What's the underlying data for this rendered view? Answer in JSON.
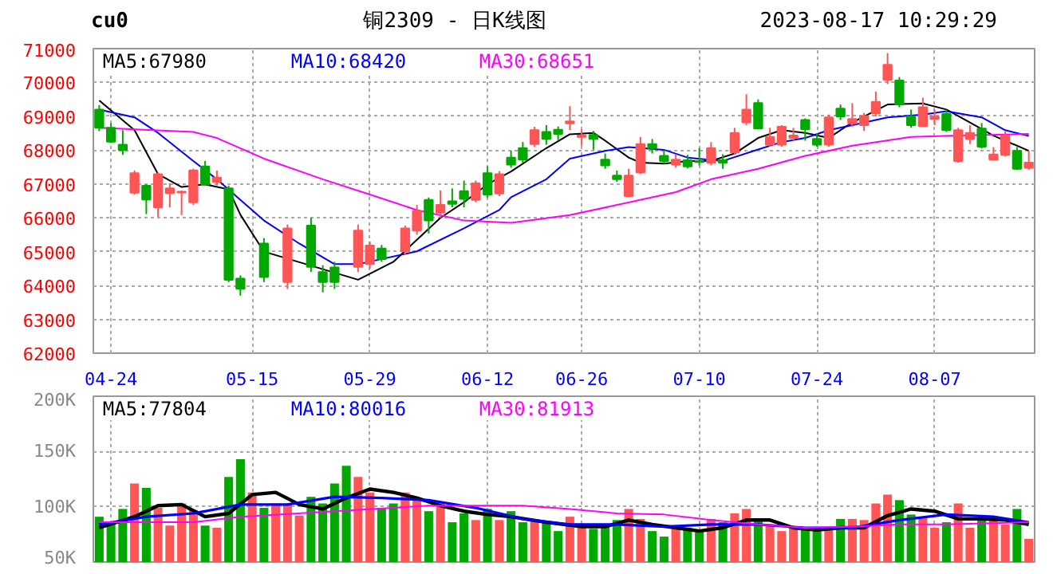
{
  "chart_data": [
    {
      "type": "candlestick",
      "title": "铜2309 - 日K线图",
      "annotations": [
        "cu0",
        "2023-08-17 10:29:29"
      ],
      "categories": [
        null,
        "04-24",
        null,
        null,
        null,
        null,
        null,
        null,
        null,
        null,
        null,
        null,
        null,
        "05-15",
        null,
        null,
        null,
        null,
        null,
        null,
        null,
        null,
        null,
        "05-29",
        null,
        null,
        null,
        null,
        null,
        null,
        null,
        null,
        null,
        "06-12",
        null,
        null,
        null,
        null,
        null,
        null,
        null,
        "06-26",
        null,
        null,
        null,
        null,
        null,
        null,
        null,
        null,
        null,
        "07-10",
        null,
        null,
        null,
        null,
        null,
        null,
        null,
        null,
        null,
        "07-24",
        null,
        null,
        null,
        null,
        null,
        null,
        null,
        null,
        null,
        "08-07",
        null,
        null,
        null,
        null,
        null,
        null,
        null,
        null
      ],
      "ohlc": [
        [
          69200,
          69330,
          68560,
          68660
        ],
        [
          68660,
          68800,
          68230,
          68250
        ],
        [
          68160,
          68590,
          67860,
          68000
        ],
        [
          66740,
          67400,
          66690,
          67320
        ],
        [
          66950,
          66990,
          66110,
          66540
        ],
        [
          66310,
          67340,
          66030,
          67290
        ],
        [
          66730,
          67020,
          66310,
          66870
        ],
        [
          66750,
          66810,
          66080,
          66770
        ],
        [
          66460,
          67450,
          66380,
          67400
        ],
        [
          67520,
          67680,
          66960,
          66990
        ],
        [
          67060,
          67400,
          66960,
          67190
        ],
        [
          66870,
          66950,
          64100,
          64170
        ],
        [
          64200,
          64300,
          63700,
          63900
        ],
        null,
        [
          65240,
          65400,
          64100,
          64250
        ],
        null,
        [
          64100,
          65800,
          63900,
          65690
        ],
        null,
        [
          65770,
          66000,
          64400,
          64550
        ],
        [
          64400,
          64600,
          63800,
          64100
        ],
        [
          64530,
          64700,
          63900,
          64100
        ],
        null,
        [
          64550,
          65800,
          64400,
          65620
        ],
        [
          64630,
          65300,
          64500,
          65180
        ],
        [
          65090,
          65200,
          64700,
          64780
        ],
        null,
        [
          65010,
          65770,
          64900,
          65690
        ],
        [
          65620,
          66380,
          65500,
          66200
        ],
        [
          66530,
          66600,
          65540,
          65920
        ],
        [
          66150,
          66810,
          66000,
          66380
        ],
        [
          66490,
          66870,
          66310,
          66410
        ],
        [
          66790,
          67100,
          66310,
          66560
        ],
        [
          66530,
          67100,
          66460,
          67020
        ],
        [
          67320,
          67520,
          66600,
          66690
        ],
        [
          66720,
          67380,
          66640,
          67290
        ],
        [
          67780,
          67980,
          67480,
          67570
        ],
        [
          68060,
          68240,
          67620,
          67720
        ],
        [
          68180,
          68690,
          68090,
          68590
        ],
        [
          68540,
          68740,
          68160,
          68330
        ],
        [
          68600,
          68700,
          68300,
          68480
        ],
        [
          68790,
          69300,
          68590,
          68850
        ],
        [
          68390,
          68610,
          68130,
          68430
        ],
        [
          68450,
          68570,
          68010,
          68330
        ],
        [
          67720,
          67900,
          67450,
          67550
        ],
        [
          67250,
          67400,
          67060,
          67140
        ],
        [
          66640,
          67450,
          66610,
          67250
        ],
        [
          67340,
          68390,
          67290,
          68180
        ],
        [
          68180,
          68330,
          67900,
          68060
        ],
        [
          67830,
          68000,
          67600,
          67680
        ],
        [
          67570,
          67880,
          67480,
          67720
        ],
        [
          67700,
          67860,
          67460,
          67520
        ],
        [
          67680,
          68060,
          67550,
          67650
        ],
        [
          67630,
          68240,
          67550,
          68060
        ],
        [
          67700,
          67880,
          67450,
          67630
        ],
        [
          67930,
          68660,
          67860,
          68510
        ],
        [
          68820,
          69650,
          68740,
          69200
        ],
        [
          69390,
          69500,
          68630,
          68640
        ],
        [
          68160,
          68660,
          68100,
          68390
        ],
        [
          68160,
          68740,
          68100,
          68690
        ],
        [
          68360,
          68660,
          68280,
          68430
        ],
        [
          68890,
          68940,
          68280,
          68620
        ],
        [
          68330,
          68500,
          68100,
          68160
        ],
        [
          68160,
          69050,
          68100,
          68970
        ],
        [
          69230,
          69350,
          68890,
          69000
        ],
        [
          68790,
          69390,
          68690,
          68920
        ],
        [
          68740,
          69100,
          68570,
          69010
        ],
        [
          69090,
          69730,
          69000,
          69430
        ],
        [
          70080,
          70870,
          69960,
          70520
        ],
        [
          70060,
          70160,
          69270,
          69350
        ],
        [
          69000,
          69200,
          68660,
          68740
        ],
        [
          68710,
          69550,
          68690,
          69270
        ],
        [
          68920,
          69200,
          68740,
          68990
        ],
        [
          69070,
          69200,
          68540,
          68590
        ],
        [
          67680,
          68660,
          67630,
          68590
        ],
        [
          68330,
          68740,
          68180,
          68510
        ],
        [
          68640,
          68800,
          68050,
          68100
        ],
        [
          67720,
          68090,
          67720,
          67870
        ],
        [
          67860,
          68560,
          67810,
          68430
        ],
        [
          67980,
          68090,
          67420,
          67450
        ],
        [
          67480,
          67980,
          67420,
          67630
        ]
      ],
      "colors": [
        "#00a800",
        "#00a800",
        "#00a800",
        "#ff5555",
        "#00a800",
        "#ff5555",
        "#ff5555",
        "#ff5555",
        "#ff5555",
        "#00a800",
        "#ff5555",
        "#00a800",
        "#00a800",
        null,
        "#00a800",
        null,
        "#ff5555",
        null,
        "#00a800",
        "#00a800",
        "#00a800",
        null,
        "#ff5555",
        "#ff5555",
        "#00a800",
        null,
        "#ff5555",
        "#ff5555",
        "#00a800",
        "#ff5555",
        "#00a800",
        "#00a800",
        "#ff5555",
        "#00a800",
        "#ff5555",
        "#00a800",
        "#00a800",
        "#ff5555",
        "#00a800",
        "#00a800",
        "#ff5555",
        "#ff5555",
        "#00a800",
        "#00a800",
        "#00a800",
        "#ff5555",
        "#ff5555",
        "#00a800",
        "#00a800",
        "#ff5555",
        "#00a800",
        "#00a800",
        "#ff5555",
        "#00a800",
        "#ff5555",
        "#ff5555",
        "#00a800",
        "#ff5555",
        "#ff5555",
        "#ff5555",
        "#00a800",
        "#00a800",
        "#ff5555",
        "#00a800",
        "#ff5555",
        "#ff5555",
        "#ff5555",
        "#ff5555",
        "#00a800",
        "#00a800",
        "#ff5555",
        "#ff5555",
        "#00a800",
        "#ff5555",
        "#ff5555",
        "#00a800",
        "#ff5555",
        "#ff5555",
        "#00a800",
        "#ff5555"
      ],
      "series": [
        {
          "type": "line",
          "name": "MA5:67980",
          "color": "#000000",
          "values": [
            69470,
            null,
            null,
            68590,
            null,
            67290,
            null,
            66910,
            null,
            66990,
            null,
            66840,
            66090,
            null,
            65000,
            null,
            null,
            null,
            null,
            null,
            null,
            null,
            64170,
            null,
            null,
            64700,
            null,
            null,
            null,
            66000,
            null,
            66460,
            null,
            66990,
            null,
            67370,
            null,
            null,
            68060,
            null,
            68470,
            null,
            68510,
            68280,
            null,
            67780,
            67630,
            null,
            67600,
            null,
            67680,
            null,
            67680,
            null,
            67900,
            null,
            68360,
            null,
            68590,
            null,
            68510,
            null,
            68360,
            null,
            68820,
            null,
            null,
            69350,
            null,
            null,
            69380,
            null,
            69200,
            null,
            68820,
            null,
            68430,
            null,
            null,
            67980
          ]
        },
        {
          "type": "line",
          "name": "MA10:68420",
          "color": "#0000ff",
          "values": [
            69200,
            null,
            null,
            68970,
            null,
            68510,
            null,
            null,
            67680,
            null,
            67140,
            null,
            66530,
            null,
            65920,
            null,
            null,
            65240,
            null,
            null,
            64630,
            null,
            64630,
            null,
            null,
            null,
            null,
            65010,
            null,
            null,
            null,
            65690,
            null,
            null,
            66230,
            66610,
            null,
            null,
            67140,
            null,
            67750,
            null,
            null,
            67980,
            null,
            68090,
            null,
            null,
            68010,
            null,
            67780,
            null,
            null,
            67680,
            null,
            null,
            68020,
            null,
            68240,
            null,
            68360,
            null,
            68590,
            null,
            68740,
            null,
            null,
            68970,
            null,
            null,
            69050,
            null,
            69150,
            null,
            null,
            68970,
            null,
            68590,
            null,
            68420
          ]
        },
        {
          "type": "line",
          "name": "MA30:68651",
          "color": "#ff00ff",
          "values": [
            68660,
            null,
            null,
            null,
            null,
            null,
            null,
            null,
            68540,
            null,
            68360,
            null,
            null,
            null,
            67750,
            null,
            null,
            null,
            null,
            67140,
            null,
            null,
            null,
            66690,
            null,
            null,
            null,
            66230,
            null,
            null,
            null,
            65920,
            null,
            null,
            null,
            65850,
            null,
            null,
            null,
            null,
            66080,
            null,
            null,
            null,
            66380,
            null,
            null,
            null,
            null,
            66760,
            null,
            null,
            67140,
            null,
            null,
            null,
            67450,
            null,
            null,
            null,
            67830,
            null,
            null,
            null,
            68130,
            null,
            null,
            null,
            null,
            68390,
            null,
            null,
            null,
            68430,
            null,
            null,
            null,
            null,
            null,
            68480
          ]
        }
      ],
      "legend": "top",
      "grid": true,
      "ylim": [
        62000,
        71000
      ],
      "yticks": [
        62000,
        63000,
        64000,
        65000,
        66000,
        67000,
        68000,
        69000,
        70000,
        71000
      ]
    },
    {
      "type": "bar",
      "categories": [
        null,
        null,
        null,
        null,
        null,
        null,
        null,
        null,
        null,
        null,
        null,
        null,
        null,
        null,
        null,
        null,
        null,
        null,
        null,
        null,
        null,
        null,
        null,
        null,
        null,
        null,
        null,
        null,
        null,
        null,
        null,
        null,
        null,
        null,
        null,
        null,
        null,
        null,
        null,
        null,
        null,
        null,
        null,
        null,
        null,
        null,
        null,
        null,
        null,
        null,
        null,
        null,
        null,
        null,
        null,
        null,
        null,
        null,
        null,
        null,
        null,
        null,
        null,
        null,
        null,
        null,
        null,
        null,
        null,
        null,
        null,
        null,
        null,
        null,
        null,
        null,
        null,
        null,
        null,
        null
      ],
      "values": [
        91000,
        84000,
        98000,
        121000,
        117000,
        99000,
        83000,
        103000,
        97000,
        83000,
        81000,
        127000,
        143000,
        113000,
        99000,
        103000,
        103000,
        92000,
        109000,
        103000,
        121000,
        137000,
        127000,
        113000,
        99000,
        103000,
        113000,
        106000,
        96000,
        103000,
        86000,
        94000,
        88000,
        98000,
        88000,
        96000,
        86000,
        88000,
        86000,
        78000,
        91000,
        84000,
        80000,
        84000,
        88000,
        98000,
        89000,
        78000,
        73000,
        81000,
        81000,
        78000,
        89000,
        86000,
        94000,
        98000,
        89000,
        84000,
        78000,
        81000,
        80000,
        81000,
        81000,
        89000,
        89000,
        88000,
        103000,
        111000,
        106000,
        93000,
        91000,
        81000,
        86000,
        103000,
        81000,
        91000,
        91000,
        84000,
        98000,
        71000
      ],
      "colors": [
        "#00a800",
        "#00a800",
        "#00a800",
        "#ff5555",
        "#00a800",
        "#ff5555",
        "#ff5555",
        "#ff5555",
        "#ff5555",
        "#00a800",
        "#ff5555",
        "#00a800",
        "#00a800",
        "#ff5555",
        "#00a800",
        "#ff5555",
        "#ff5555",
        "#ff5555",
        "#00a800",
        "#00a800",
        "#00a800",
        "#00a800",
        "#ff5555",
        "#ff5555",
        "#00a800",
        "#00a800",
        "#ff5555",
        "#ff5555",
        "#00a800",
        "#ff5555",
        "#00a800",
        "#00a800",
        "#ff5555",
        "#00a800",
        "#ff5555",
        "#00a800",
        "#00a800",
        "#ff5555",
        "#00a800",
        "#00a800",
        "#ff5555",
        "#ff5555",
        "#00a800",
        "#00a800",
        "#00a800",
        "#ff5555",
        "#ff5555",
        "#00a800",
        "#00a800",
        "#ff5555",
        "#00a800",
        "#00a800",
        "#ff5555",
        "#00a800",
        "#ff5555",
        "#ff5555",
        "#00a800",
        "#ff5555",
        "#ff5555",
        "#ff5555",
        "#00a800",
        "#00a800",
        "#ff5555",
        "#00a800",
        "#ff5555",
        "#ff5555",
        "#ff5555",
        "#ff5555",
        "#00a800",
        "#00a800",
        "#ff5555",
        "#ff5555",
        "#00a800",
        "#ff5555",
        "#ff5555",
        "#00a800",
        "#ff5555",
        "#ff5555",
        "#00a800",
        "#ff5555"
      ],
      "series": [
        {
          "type": "line",
          "name": "MA5:77804",
          "color": "#000000",
          "values": [
            81000,
            null,
            null,
            91000,
            null,
            101000,
            null,
            102000,
            null,
            91000,
            null,
            94000,
            null,
            111000,
            null,
            113000,
            null,
            102000,
            null,
            98000,
            null,
            108000,
            null,
            116000,
            null,
            113000,
            null,
            108000,
            null,
            101000,
            null,
            96000,
            null,
            93000,
            null,
            91000,
            null,
            null,
            86000,
            null,
            null,
            82000,
            null,
            82000,
            null,
            88000,
            null,
            84000,
            null,
            81000,
            null,
            78000,
            null,
            81000,
            null,
            88000,
            null,
            88000,
            null,
            81000,
            null,
            79000,
            null,
            81000,
            null,
            81000,
            null,
            92000,
            null,
            98000,
            null,
            96000,
            null,
            89000,
            null,
            89000,
            null,
            88000,
            null,
            84000
          ]
        },
        {
          "type": "line",
          "name": "MA10:80016",
          "color": "#0000ff",
          "values": [
            84000,
            null,
            null,
            null,
            91000,
            null,
            null,
            null,
            94000,
            null,
            null,
            null,
            102000,
            null,
            null,
            null,
            102000,
            null,
            null,
            null,
            109000,
            null,
            null,
            null,
            108000,
            null,
            null,
            null,
            106000,
            null,
            null,
            null,
            99000,
            null,
            null,
            null,
            89000,
            null,
            null,
            null,
            84000,
            null,
            null,
            null,
            84000,
            null,
            null,
            null,
            82000,
            null,
            null,
            null,
            84000,
            null,
            null,
            null,
            84000,
            null,
            null,
            null,
            81000,
            null,
            null,
            null,
            81000,
            null,
            null,
            null,
            88000,
            null,
            null,
            null,
            93000,
            null,
            null,
            null,
            91000,
            null,
            null,
            86000
          ]
        },
        {
          "type": "line",
          "name": "MA30:81913",
          "color": "#ff00ff",
          "values": [
            86000,
            null,
            null,
            null,
            null,
            null,
            null,
            null,
            86000,
            null,
            null,
            null,
            91000,
            null,
            null,
            null,
            null,
            null,
            null,
            null,
            96000,
            null,
            null,
            null,
            null,
            null,
            null,
            null,
            101000,
            null,
            null,
            null,
            null,
            null,
            null,
            null,
            101000,
            null,
            null,
            null,
            98000,
            null,
            null,
            null,
            94000,
            null,
            null,
            null,
            93000,
            null,
            null,
            null,
            88000,
            null,
            null,
            null,
            84000,
            null,
            null,
            null,
            81000,
            null,
            null,
            null,
            82000,
            null,
            null,
            null,
            84000,
            null,
            null,
            null,
            84000,
            null,
            null,
            null,
            null,
            null,
            null,
            86000
          ]
        }
      ],
      "legend": "top",
      "grid": true,
      "tick_labels": "y",
      "ylim": [
        50000,
        200000
      ],
      "yticks": [
        {
          "value": 50000,
          "label": "50K"
        },
        {
          "value": 100000,
          "label": "100K"
        },
        {
          "value": 150000,
          "label": "150K"
        },
        {
          "value": 200000,
          "label": "200K"
        }
      ]
    }
  ]
}
